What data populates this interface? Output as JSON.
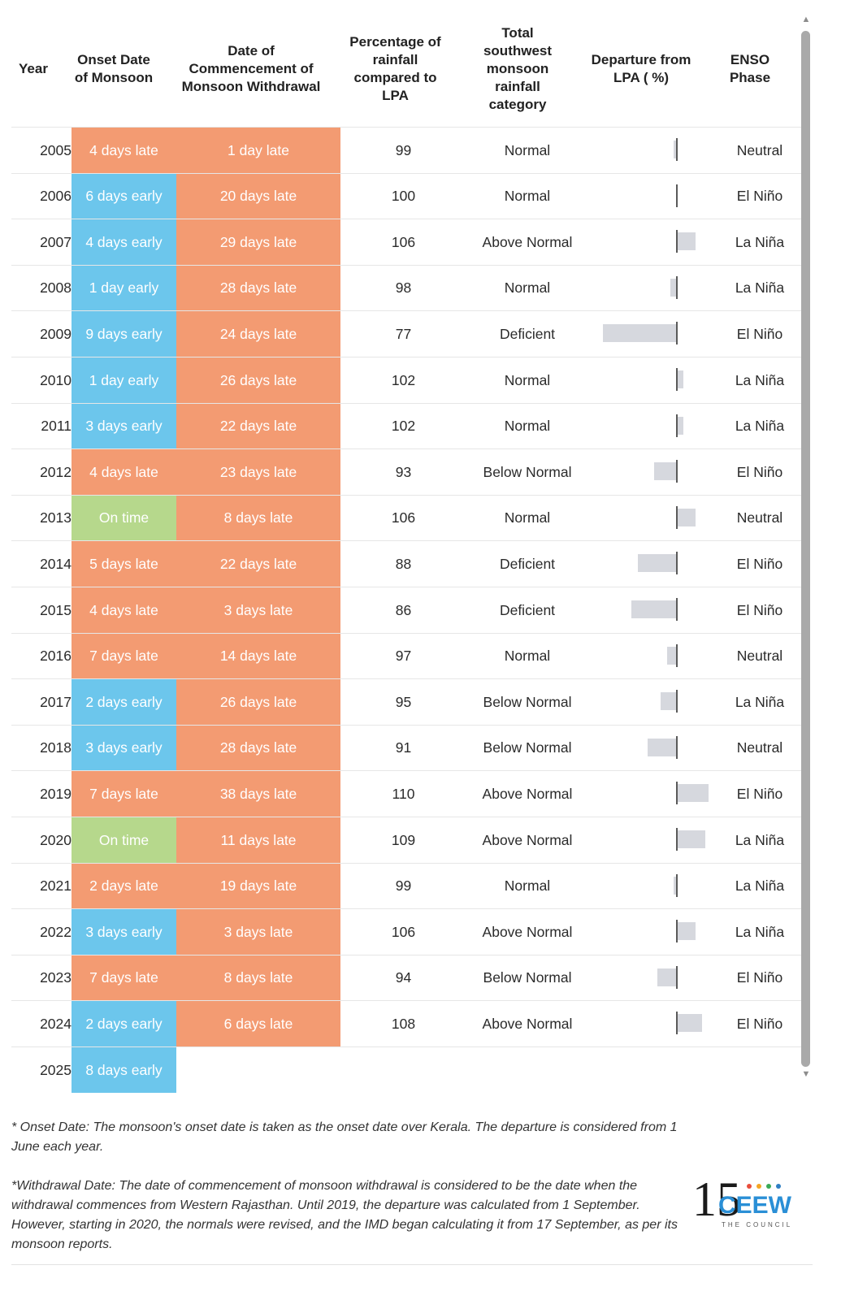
{
  "headers": {
    "year": "Year",
    "onset": "Onset Date of Monsoon",
    "withdrawal": "Date of Commencement of Monsoon Withdrawal",
    "percentage": "Percentage of rainfall compared to LPA",
    "category": "Total southwest monsoon rainfall category",
    "departure": "Departure from LPA ( %)",
    "enso": "ENSO Phase"
  },
  "colors": {
    "late": "#f39b72",
    "early": "#6cc6ec",
    "on_time": "#b6d88c",
    "departure_bar": "#d6d8de"
  },
  "chart_data": {
    "type": "table",
    "departure_axis": {
      "min": -25,
      "max": 12
    },
    "rows": [
      {
        "year": "2005",
        "onset": "4 days late",
        "onset_status": "late",
        "withdrawal": "1 day late",
        "percentage": "99",
        "category": "Normal",
        "departure": -1,
        "enso": "Neutral"
      },
      {
        "year": "2006",
        "onset": "6 days early",
        "onset_status": "early",
        "withdrawal": "20 days late",
        "percentage": "100",
        "category": "Normal",
        "departure": 0,
        "enso": "El Niño"
      },
      {
        "year": "2007",
        "onset": "4 days early",
        "onset_status": "early",
        "withdrawal": "29 days late",
        "percentage": "106",
        "category": "Above Normal",
        "departure": 6,
        "enso": "La Niña"
      },
      {
        "year": "2008",
        "onset": "1 day early",
        "onset_status": "early",
        "withdrawal": "28 days late",
        "percentage": "98",
        "category": "Normal",
        "departure": -2,
        "enso": "La Niña"
      },
      {
        "year": "2009",
        "onset": "9 days early",
        "onset_status": "early",
        "withdrawal": "24 days late",
        "percentage": "77",
        "category": "Deficient",
        "departure": -23,
        "enso": "El Niño"
      },
      {
        "year": "2010",
        "onset": "1 day early",
        "onset_status": "early",
        "withdrawal": "26 days late",
        "percentage": "102",
        "category": "Normal",
        "departure": 2,
        "enso": "La Niña"
      },
      {
        "year": "2011",
        "onset": "3 days early",
        "onset_status": "early",
        "withdrawal": "22 days late",
        "percentage": "102",
        "category": "Normal",
        "departure": 2,
        "enso": "La Niña"
      },
      {
        "year": "2012",
        "onset": "4 days late",
        "onset_status": "late",
        "withdrawal": "23 days late",
        "percentage": "93",
        "category": "Below Normal",
        "departure": -7,
        "enso": "El Niño"
      },
      {
        "year": "2013",
        "onset": "On time",
        "onset_status": "on_time",
        "withdrawal": "8 days late",
        "percentage": "106",
        "category": "Normal",
        "departure": 6,
        "enso": "Neutral"
      },
      {
        "year": "2014",
        "onset": "5 days late",
        "onset_status": "late",
        "withdrawal": "22 days late",
        "percentage": "88",
        "category": "Deficient",
        "departure": -12,
        "enso": "El Niño"
      },
      {
        "year": "2015",
        "onset": "4 days late",
        "onset_status": "late",
        "withdrawal": "3 days late",
        "percentage": "86",
        "category": "Deficient",
        "departure": -14,
        "enso": "El Niño"
      },
      {
        "year": "2016",
        "onset": "7 days late",
        "onset_status": "late",
        "withdrawal": "14 days late",
        "percentage": "97",
        "category": "Normal",
        "departure": -3,
        "enso": "Neutral"
      },
      {
        "year": "2017",
        "onset": "2 days early",
        "onset_status": "early",
        "withdrawal": "26 days late",
        "percentage": "95",
        "category": "Below Normal",
        "departure": -5,
        "enso": "La Niña"
      },
      {
        "year": "2018",
        "onset": "3 days early",
        "onset_status": "early",
        "withdrawal": "28 days late",
        "percentage": "91",
        "category": "Below Normal",
        "departure": -9,
        "enso": "Neutral"
      },
      {
        "year": "2019",
        "onset": "7 days late",
        "onset_status": "late",
        "withdrawal": "38 days late",
        "percentage": "110",
        "category": "Above Normal",
        "departure": 10,
        "enso": "El Niño"
      },
      {
        "year": "2020",
        "onset": "On time",
        "onset_status": "on_time",
        "withdrawal": "11 days late",
        "percentage": "109",
        "category": "Above Normal",
        "departure": 9,
        "enso": "La Niña"
      },
      {
        "year": "2021",
        "onset": "2 days late",
        "onset_status": "late",
        "withdrawal": "19 days late",
        "percentage": "99",
        "category": "Normal",
        "departure": -1,
        "enso": "La Niña"
      },
      {
        "year": "2022",
        "onset": "3 days early",
        "onset_status": "early",
        "withdrawal": "3 days late",
        "percentage": "106",
        "category": "Above Normal",
        "departure": 6,
        "enso": "La Niña"
      },
      {
        "year": "2023",
        "onset": "7 days late",
        "onset_status": "late",
        "withdrawal": "8 days late",
        "percentage": "94",
        "category": "Below Normal",
        "departure": -6,
        "enso": "El Niño"
      },
      {
        "year": "2024",
        "onset": "2 days early",
        "onset_status": "early",
        "withdrawal": "6 days late",
        "percentage": "108",
        "category": "Above Normal",
        "departure": 8,
        "enso": "El Niño"
      },
      {
        "year": "2025",
        "onset": "8 days early",
        "onset_status": "early",
        "withdrawal": "",
        "percentage": "",
        "category": "",
        "departure": null,
        "enso": ""
      }
    ]
  },
  "notes": {
    "onset": "* Onset Date: The monsoon's onset date is taken as the onset date over Kerala. The departure is considered from 1 June each year.",
    "withdrawal": "*Withdrawal Date: The date of commencement of monsoon withdrawal is considered to be the date when the withdrawal commences from Western Rajasthan. Until 2019, the departure was calculated from 1 September. However, starting in 2020, the normals were revised, and the IMD began calculating it from 17 September, as per its monsoon reports."
  },
  "logo": {
    "number": "15",
    "name": "CEEW",
    "tagline": "THE COUNCIL",
    "dot_colors": [
      "#e94e3c",
      "#f5a623",
      "#3aaa56",
      "#2f7fc4"
    ]
  },
  "scrollbar": {
    "up_icon": "chevron-up-icon",
    "down_icon": "chevron-down-icon"
  }
}
